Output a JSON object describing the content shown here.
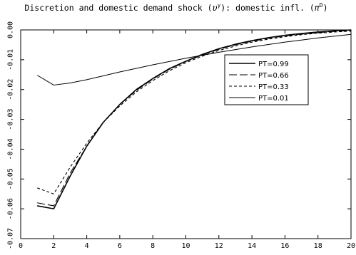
{
  "chart_data": {
    "type": "line",
    "title": "Discretion and domestic demand shock (υʸ): domestic infl. (π ᴰ)",
    "title_parts": {
      "main": "Discretion and domestic demand shock (",
      "upsilon": "υ",
      "upsilon_sup": "y",
      "mid": "): domestic infl. (",
      "pi": "π",
      "pi_sup": "D",
      "end": ")"
    },
    "xlabel": "",
    "ylabel": "",
    "xlim": [
      0,
      20
    ],
    "ylim": [
      -0.07,
      0.0
    ],
    "x_ticks": [
      "0",
      "2",
      "4",
      "6",
      "8",
      "10",
      "12",
      "14",
      "16",
      "18",
      "20"
    ],
    "y_ticks": [
      "0.00",
      "-0.01",
      "-0.02",
      "-0.03",
      "-0.04",
      "-0.05",
      "-0.06",
      "-0.07"
    ],
    "grid": false,
    "legend_position": "top-right",
    "x": [
      1,
      2,
      3,
      4,
      5,
      6,
      7,
      8,
      9,
      10,
      11,
      12,
      13,
      14,
      15,
      16,
      17,
      18,
      19,
      20
    ],
    "series": [
      {
        "name": "PT=0.99",
        "style": "solid",
        "values": [
          -0.059,
          -0.06,
          -0.049,
          -0.039,
          -0.031,
          -0.025,
          -0.02,
          -0.0163,
          -0.013,
          -0.0105,
          -0.0082,
          -0.0063,
          -0.0048,
          -0.0036,
          -0.0026,
          -0.0018,
          -0.0012,
          -0.0007,
          -0.0003,
          0.0
        ]
      },
      {
        "name": "PT=0.66",
        "style": "long-dash",
        "values": [
          -0.058,
          -0.059,
          -0.048,
          -0.039,
          -0.031,
          -0.025,
          -0.0203,
          -0.0165,
          -0.0132,
          -0.0106,
          -0.0084,
          -0.0065,
          -0.005,
          -0.0038,
          -0.0028,
          -0.002,
          -0.0014,
          -0.0009,
          -0.0005,
          -0.0002
        ]
      },
      {
        "name": "PT=0.33",
        "style": "short-dash",
        "values": [
          -0.053,
          -0.055,
          -0.046,
          -0.038,
          -0.031,
          -0.0255,
          -0.0208,
          -0.017,
          -0.0137,
          -0.011,
          -0.0088,
          -0.0069,
          -0.0054,
          -0.0041,
          -0.0031,
          -0.0023,
          -0.0016,
          -0.0011,
          -0.0007,
          -0.0004
        ]
      },
      {
        "name": "PT=0.01",
        "style": "thin-solid",
        "values": [
          -0.0152,
          -0.0185,
          -0.0178,
          -0.0167,
          -0.0154,
          -0.0141,
          -0.0129,
          -0.0117,
          -0.0106,
          -0.0095,
          -0.0085,
          -0.0075,
          -0.0066,
          -0.0057,
          -0.0049,
          -0.0041,
          -0.0034,
          -0.0027,
          -0.0021,
          -0.0015
        ]
      }
    ]
  }
}
